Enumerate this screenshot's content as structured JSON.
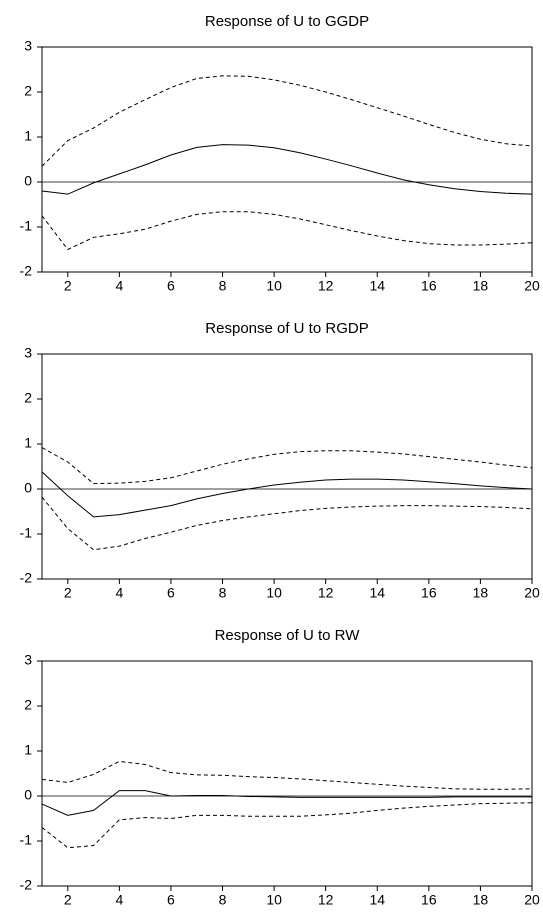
{
  "chart_data": [
    {
      "type": "line",
      "title": "Response of U to GGDP",
      "x": [
        1,
        2,
        3,
        4,
        5,
        6,
        7,
        8,
        9,
        10,
        11,
        12,
        13,
        14,
        15,
        16,
        17,
        18,
        19,
        20
      ],
      "xlim": [
        1,
        20
      ],
      "xticks": [
        2,
        4,
        6,
        8,
        10,
        12,
        14,
        16,
        18,
        20
      ],
      "ylim": [
        -2,
        3
      ],
      "yticks": [
        -2,
        -1,
        0,
        1,
        2,
        3
      ],
      "reference_line": 0,
      "series": [
        {
          "color": "#000000",
          "style": "solid",
          "values": [
            -0.2,
            -0.27,
            -0.02,
            0.18,
            0.38,
            0.6,
            0.77,
            0.83,
            0.82,
            0.76,
            0.65,
            0.51,
            0.36,
            0.2,
            0.05,
            -0.06,
            -0.15,
            -0.21,
            -0.25,
            -0.27
          ]
        },
        {
          "color": "#000000",
          "style": "dashed",
          "values": [
            0.35,
            0.92,
            1.2,
            1.55,
            1.83,
            2.1,
            2.3,
            2.36,
            2.35,
            2.27,
            2.15,
            2.0,
            1.83,
            1.65,
            1.47,
            1.28,
            1.1,
            0.95,
            0.85,
            0.8
          ]
        },
        {
          "color": "#000000",
          "style": "dashed",
          "values": [
            -0.75,
            -1.5,
            -1.23,
            -1.15,
            -1.05,
            -0.87,
            -0.72,
            -0.66,
            -0.66,
            -0.72,
            -0.82,
            -0.95,
            -1.08,
            -1.2,
            -1.3,
            -1.37,
            -1.4,
            -1.4,
            -1.38,
            -1.35
          ]
        }
      ]
    },
    {
      "type": "line",
      "title": "Response of U to RGDP",
      "x": [
        1,
        2,
        3,
        4,
        5,
        6,
        7,
        8,
        9,
        10,
        11,
        12,
        13,
        14,
        15,
        16,
        17,
        18,
        19,
        20
      ],
      "xlim": [
        1,
        20
      ],
      "xticks": [
        2,
        4,
        6,
        8,
        10,
        12,
        14,
        16,
        18,
        20
      ],
      "ylim": [
        -2,
        3
      ],
      "yticks": [
        -2,
        -1,
        0,
        1,
        2,
        3
      ],
      "reference_line": 0,
      "series": [
        {
          "color": "#000000",
          "style": "solid",
          "values": [
            0.38,
            -0.15,
            -0.62,
            -0.57,
            -0.47,
            -0.37,
            -0.22,
            -0.1,
            0.0,
            0.09,
            0.15,
            0.2,
            0.22,
            0.22,
            0.2,
            0.16,
            0.12,
            0.07,
            0.03,
            0.0
          ]
        },
        {
          "color": "#000000",
          "style": "dashed",
          "values": [
            0.92,
            0.6,
            0.12,
            0.13,
            0.17,
            0.25,
            0.4,
            0.55,
            0.67,
            0.77,
            0.83,
            0.85,
            0.85,
            0.82,
            0.78,
            0.72,
            0.66,
            0.6,
            0.53,
            0.47
          ]
        },
        {
          "color": "#000000",
          "style": "dashed",
          "values": [
            -0.18,
            -0.88,
            -1.35,
            -1.27,
            -1.1,
            -0.96,
            -0.81,
            -0.7,
            -0.62,
            -0.55,
            -0.48,
            -0.43,
            -0.4,
            -0.38,
            -0.37,
            -0.37,
            -0.38,
            -0.39,
            -0.41,
            -0.44
          ]
        }
      ]
    },
    {
      "type": "line",
      "title": "Response of U to RW",
      "x": [
        1,
        2,
        3,
        4,
        5,
        6,
        7,
        8,
        9,
        10,
        11,
        12,
        13,
        14,
        15,
        16,
        17,
        18,
        19,
        20
      ],
      "xlim": [
        1,
        20
      ],
      "xticks": [
        2,
        4,
        6,
        8,
        10,
        12,
        14,
        16,
        18,
        20
      ],
      "ylim": [
        -2,
        3
      ],
      "yticks": [
        -2,
        -1,
        0,
        1,
        2,
        3
      ],
      "reference_line": 0,
      "series": [
        {
          "color": "#000000",
          "style": "solid",
          "values": [
            -0.18,
            -0.43,
            -0.32,
            0.12,
            0.12,
            0.0,
            0.01,
            0.01,
            -0.01,
            -0.02,
            -0.03,
            -0.03,
            -0.03,
            -0.03,
            -0.03,
            -0.03,
            -0.02,
            -0.02,
            -0.02,
            -0.02
          ]
        },
        {
          "color": "#000000",
          "style": "dashed",
          "values": [
            0.37,
            0.3,
            0.48,
            0.77,
            0.7,
            0.52,
            0.47,
            0.46,
            0.43,
            0.41,
            0.38,
            0.34,
            0.3,
            0.26,
            0.22,
            0.19,
            0.16,
            0.15,
            0.15,
            0.16
          ]
        },
        {
          "color": "#000000",
          "style": "dashed",
          "values": [
            -0.7,
            -1.15,
            -1.1,
            -0.53,
            -0.48,
            -0.5,
            -0.43,
            -0.43,
            -0.45,
            -0.45,
            -0.45,
            -0.42,
            -0.38,
            -0.32,
            -0.27,
            -0.23,
            -0.2,
            -0.17,
            -0.16,
            -0.15
          ]
        }
      ]
    }
  ]
}
